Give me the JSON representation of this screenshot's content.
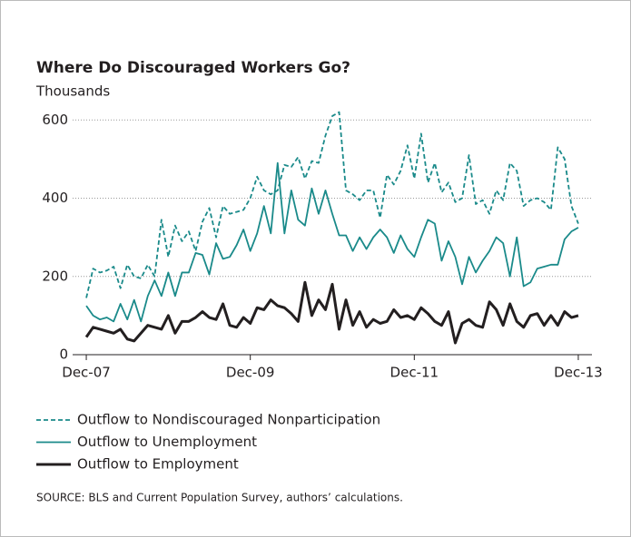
{
  "chart_data": {
    "type": "line",
    "title": "Where Do Discouraged Workers Go?",
    "y_label": "Thousands",
    "source": "SOURCE: BLS and Current Population Survey, authors’ calculations.",
    "x": [
      "2007-12",
      "2008-01",
      "2008-02",
      "2008-03",
      "2008-04",
      "2008-05",
      "2008-06",
      "2008-07",
      "2008-08",
      "2008-09",
      "2008-10",
      "2008-11",
      "2008-12",
      "2009-01",
      "2009-02",
      "2009-03",
      "2009-04",
      "2009-05",
      "2009-06",
      "2009-07",
      "2009-08",
      "2009-09",
      "2009-10",
      "2009-11",
      "2009-12",
      "2010-01",
      "2010-02",
      "2010-03",
      "2010-04",
      "2010-05",
      "2010-06",
      "2010-07",
      "2010-08",
      "2010-09",
      "2010-10",
      "2010-11",
      "2010-12",
      "2011-01",
      "2011-02",
      "2011-03",
      "2011-04",
      "2011-05",
      "2011-06",
      "2011-07",
      "2011-08",
      "2011-09",
      "2011-10",
      "2011-11",
      "2011-12",
      "2012-01",
      "2012-02",
      "2012-03",
      "2012-04",
      "2012-05",
      "2012-06",
      "2012-07",
      "2012-08",
      "2012-09",
      "2012-10",
      "2012-11",
      "2012-12",
      "2013-01",
      "2013-02",
      "2013-03",
      "2013-04",
      "2013-05",
      "2013-06",
      "2013-07",
      "2013-08",
      "2013-09",
      "2013-10",
      "2013-11",
      "2013-12"
    ],
    "xlim": [
      "2007-10",
      "2014-02"
    ],
    "xticks": [
      {
        "value": "2007-12",
        "label": "Dec-07"
      },
      {
        "value": "2009-12",
        "label": "Dec-09"
      },
      {
        "value": "2011-12",
        "label": "Dec-11"
      },
      {
        "value": "2013-12",
        "label": "Dec-13"
      }
    ],
    "ylim": [
      0,
      640
    ],
    "yticks": [
      0,
      200,
      400,
      600
    ],
    "grid": true,
    "series": [
      {
        "name": "Outflow to Nondiscouraged Nonparticipation",
        "color": "#1a8a8a",
        "dash": "dashed",
        "values": [
          145,
          220,
          210,
          215,
          225,
          170,
          230,
          200,
          195,
          230,
          200,
          345,
          250,
          330,
          290,
          315,
          265,
          340,
          375,
          300,
          380,
          360,
          365,
          370,
          400,
          455,
          420,
          410,
          420,
          485,
          480,
          505,
          450,
          495,
          490,
          560,
          610,
          620,
          420,
          410,
          395,
          420,
          420,
          350,
          460,
          435,
          470,
          535,
          450,
          565,
          440,
          490,
          415,
          440,
          390,
          400,
          510,
          385,
          395,
          360,
          420,
          395,
          490,
          470,
          380,
          395,
          400,
          390,
          370,
          530,
          500,
          380,
          335
        ]
      },
      {
        "name": "Outflow to Unemployment",
        "color": "#1a8a8a",
        "values": [
          125,
          100,
          90,
          95,
          85,
          130,
          90,
          140,
          85,
          150,
          190,
          150,
          210,
          150,
          210,
          210,
          260,
          255,
          205,
          285,
          245,
          250,
          280,
          320,
          265,
          310,
          380,
          310,
          490,
          310,
          420,
          345,
          330,
          425,
          360,
          420,
          360,
          305,
          305,
          265,
          300,
          270,
          300,
          320,
          300,
          260,
          305,
          270,
          250,
          300,
          345,
          335,
          240,
          290,
          250,
          180,
          250,
          210,
          240,
          265,
          300,
          285,
          200,
          300,
          175,
          185,
          220,
          225,
          230,
          230,
          295,
          315,
          325
        ]
      },
      {
        "name": "Outflow to Employment",
        "color": "#231f20",
        "values": [
          45,
          70,
          65,
          60,
          55,
          65,
          40,
          35,
          55,
          75,
          70,
          65,
          100,
          55,
          85,
          85,
          95,
          110,
          95,
          90,
          130,
          75,
          70,
          95,
          80,
          120,
          115,
          140,
          125,
          120,
          105,
          85,
          185,
          100,
          140,
          115,
          180,
          65,
          140,
          75,
          110,
          70,
          90,
          80,
          85,
          115,
          95,
          100,
          90,
          120,
          105,
          85,
          75,
          110,
          30,
          80,
          90,
          75,
          70,
          135,
          115,
          75,
          130,
          85,
          70,
          100,
          105,
          75,
          100,
          75,
          110,
          95,
          100
        ]
      }
    ]
  }
}
